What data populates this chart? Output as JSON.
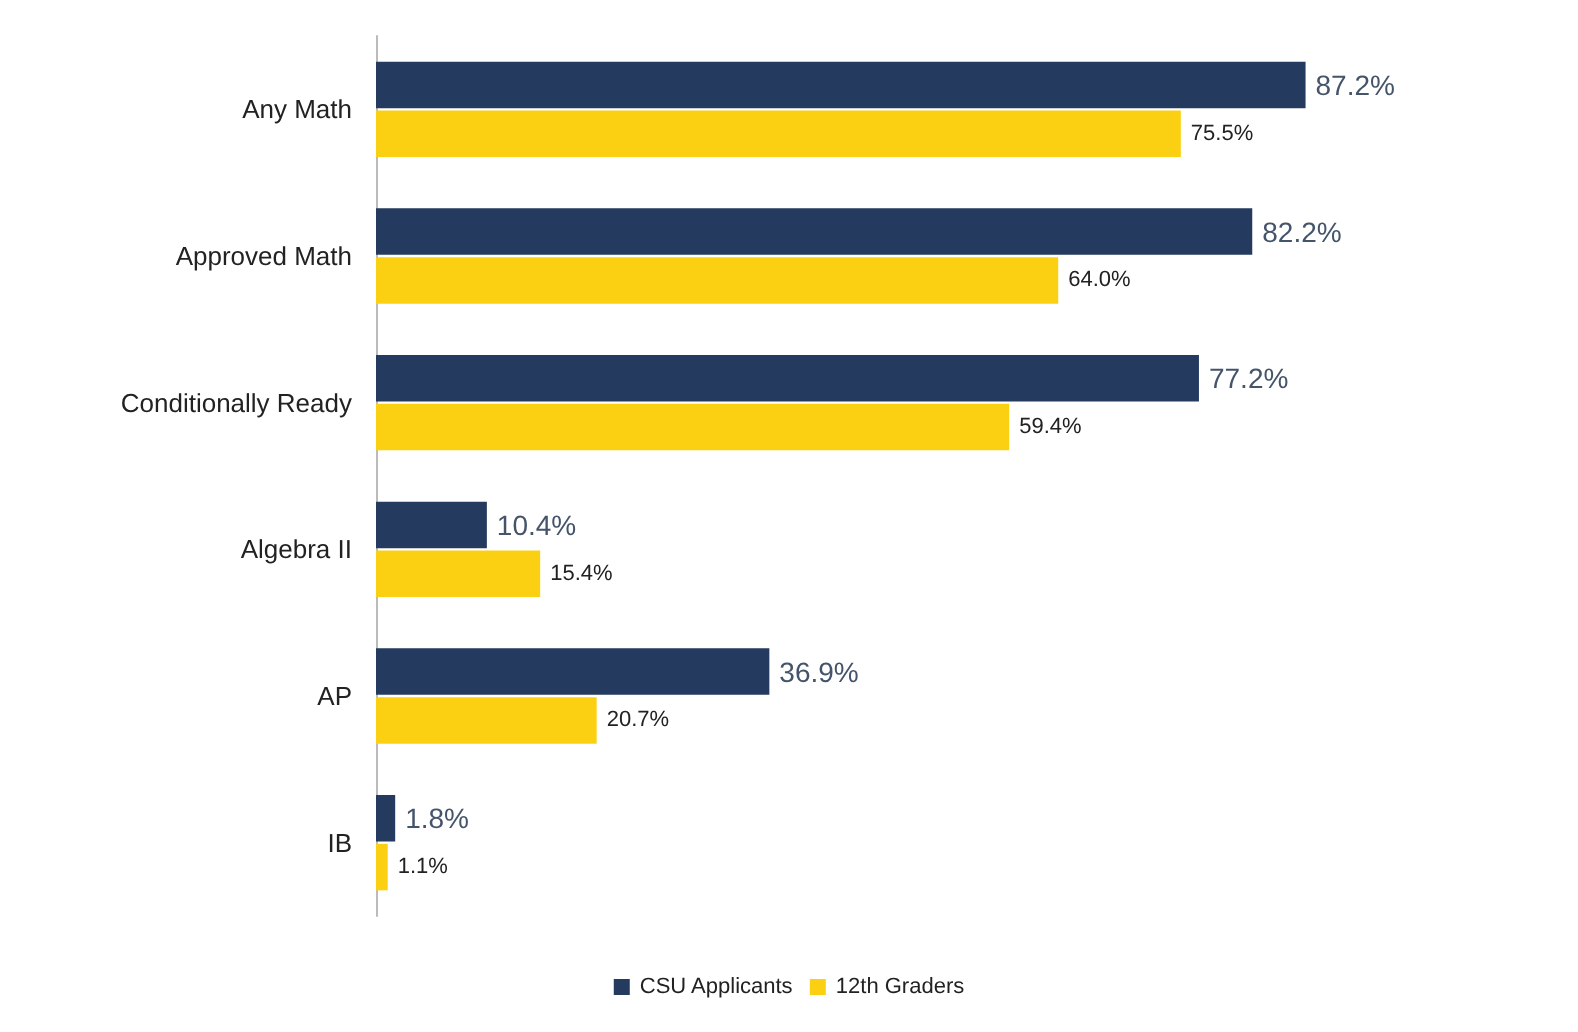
{
  "chart_data": {
    "type": "bar",
    "orientation": "horizontal",
    "categories": [
      "Any Math",
      "Approved Math",
      "Conditionally Ready",
      "Algebra II",
      "AP",
      "IB"
    ],
    "series": [
      {
        "name": "CSU Applicants",
        "color": "#243a5e",
        "values": [
          87.2,
          82.2,
          77.2,
          10.4,
          36.9,
          1.8
        ],
        "value_labels": [
          "87.2%",
          "82.2%",
          "77.2%",
          "10.4%",
          "36.9%",
          "1.8%"
        ]
      },
      {
        "name": "12th Graders",
        "color": "#fcd012",
        "values": [
          75.5,
          64.0,
          59.4,
          15.4,
          20.7,
          1.1
        ],
        "value_labels": [
          "75.5%",
          "64.0%",
          "59.4%",
          "15.4%",
          "20.7%",
          "1.1%"
        ]
      }
    ],
    "legend": "bottom"
  }
}
